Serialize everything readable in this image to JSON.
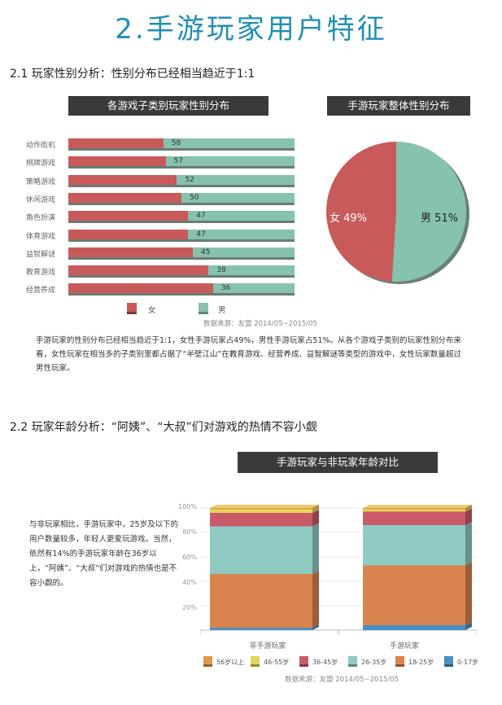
{
  "title": "2.手游玩家用户特征",
  "section1": {
    "heading": "2.1 玩家性别分析：性别分布已经相当趋近于1:1",
    "bar_chart_title": "各游戏子类别玩家性别分布",
    "pie_chart_title": "手游玩家整体性别分布",
    "legend_female": "女",
    "legend_male": "男",
    "source": "数据来源：友盟 2014/05~2015/05",
    "paragraph": "手游玩家的性别分布已经相当趋近于1:1，女性手游玩家占49%，男性手游玩家占51%。从各个游戏子类别的玩家性别分布来看，女性玩家在相当多的子类别里都占据了“半壁江山”在教育游戏、经营养成、益智解谜等类型的游戏中，女性玩家数量超过男性玩家。"
  },
  "section2": {
    "heading": "2.2 玩家年龄分析：“阿姨”、“大叔”们对游戏的热情不容小觑",
    "chart_title": "手游玩家与非玩家年龄对比",
    "side_text": "与非玩家相比，手游玩家中，25岁及以下的用户数量较多，年轻人更爱玩游戏。当然，依然有14%的手游玩家年龄在36岁以上，“阿姨”、“大叔”们对游戏的热情也是不容小觑的。",
    "source": "数据来源：友盟 2014/05~2015/05"
  },
  "chart_data": [
    {
      "type": "bar",
      "orientation": "horizontal-stacked",
      "title": "各游戏子类别玩家性别分布",
      "categories": [
        "动作街机",
        "棋牌游戏",
        "策略游戏",
        "休闲游戏",
        "角色扮演",
        "体育游戏",
        "益智解谜",
        "教育游戏",
        "经营养成"
      ],
      "series": [
        {
          "name": "女",
          "values": [
            42,
            43,
            48,
            50,
            53,
            53,
            55,
            62,
            64
          ]
        },
        {
          "name": "男",
          "values": [
            58,
            57,
            52,
            50,
            47,
            47,
            45,
            38,
            36
          ]
        }
      ],
      "colors": {
        "女": "#c85a5a",
        "男": "#86c2ad"
      },
      "legend": "bottom"
    },
    {
      "type": "pie",
      "title": "手游玩家整体性别分布",
      "labels": [
        "女 49%",
        "男 51%"
      ],
      "values": [
        49,
        51
      ],
      "colors": [
        "#c85a5a",
        "#86c2ad"
      ]
    },
    {
      "type": "bar",
      "orientation": "vertical-stacked-percent",
      "title": "手游玩家与非玩家年龄对比",
      "categories": [
        "非手游玩家",
        "手游玩家"
      ],
      "ylim": [
        0,
        100
      ],
      "yticks": [
        "20%",
        "40%",
        "60%",
        "80%",
        "100%"
      ],
      "series": [
        {
          "name": "0-17岁",
          "values": [
            2,
            4
          ],
          "color": "#4a90c4"
        },
        {
          "name": "18-25岁",
          "values": [
            44,
            49
          ],
          "color": "#d9834e"
        },
        {
          "name": "26-35岁",
          "values": [
            39,
            33
          ],
          "color": "#8fcac3"
        },
        {
          "name": "36-45岁",
          "values": [
            11,
            11
          ],
          "color": "#c85a6a"
        },
        {
          "name": "46-55岁",
          "values": [
            3,
            2
          ],
          "color": "#e6d35a"
        },
        {
          "name": "56岁以上",
          "values": [
            1,
            1
          ],
          "color": "#e09a4e"
        }
      ],
      "legend_order": [
        "56岁以上",
        "46-55岁",
        "36-45岁",
        "26-35岁",
        "18-25岁",
        "0-17岁"
      ],
      "legend": "bottom",
      "grid": true
    }
  ]
}
